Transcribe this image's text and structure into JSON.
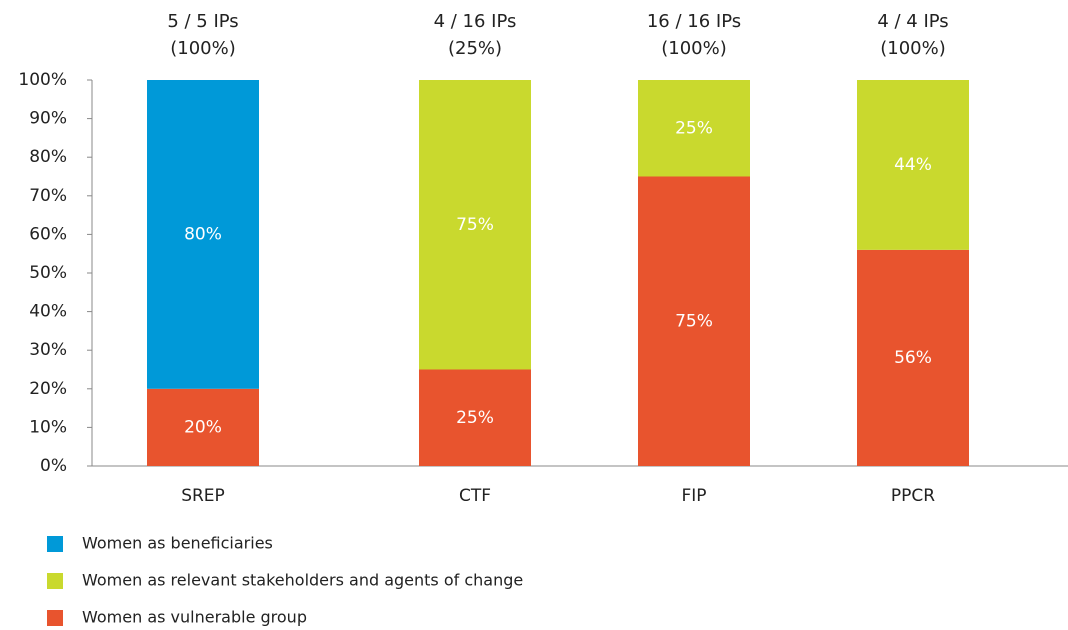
{
  "chart_data": {
    "type": "stacked_bar",
    "categories": [
      "SREP",
      "CTF",
      "FIP",
      "PPCR"
    ],
    "annotations": [
      [
        "5 / 5 IPs",
        "(100%)"
      ],
      [
        "4 / 16 IPs",
        "(25%)"
      ],
      [
        "16 / 16 IPs",
        "(100%)"
      ],
      [
        "4 / 4 IPs",
        "(100%)"
      ]
    ],
    "series": [
      {
        "name": "Women as beneficiaries",
        "color": "#0099d8",
        "values": [
          80,
          null,
          null,
          null
        ],
        "value_labels": [
          "80%",
          null,
          null,
          null
        ]
      },
      {
        "name": "Women as relevant stakeholders and agents of change",
        "color": "#c9d92e",
        "values": [
          null,
          75,
          25,
          44
        ],
        "value_labels": [
          null,
          "75%",
          "25%",
          "44%"
        ]
      },
      {
        "name": "Women as vulnerable group",
        "color": "#e8542e",
        "values": [
          20,
          25,
          75,
          56
        ],
        "value_labels": [
          "20%",
          "25%",
          "75%",
          "56%"
        ]
      }
    ],
    "ylim": [
      0,
      100
    ],
    "yticks": [
      {
        "value": 0,
        "label": "0%"
      },
      {
        "value": 10,
        "label": "10%"
      },
      {
        "value": 20,
        "label": "20%"
      },
      {
        "value": 30,
        "label": "30%"
      },
      {
        "value": 40,
        "label": "40%"
      },
      {
        "value": 50,
        "label": "50%"
      },
      {
        "value": 60,
        "label": "60%"
      },
      {
        "value": 70,
        "label": "70%"
      },
      {
        "value": 80,
        "label": "80%"
      },
      {
        "value": 90,
        "label": "90%"
      },
      {
        "value": 100,
        "label": "100%"
      }
    ],
    "grid": false,
    "legend": "bottom-left"
  }
}
